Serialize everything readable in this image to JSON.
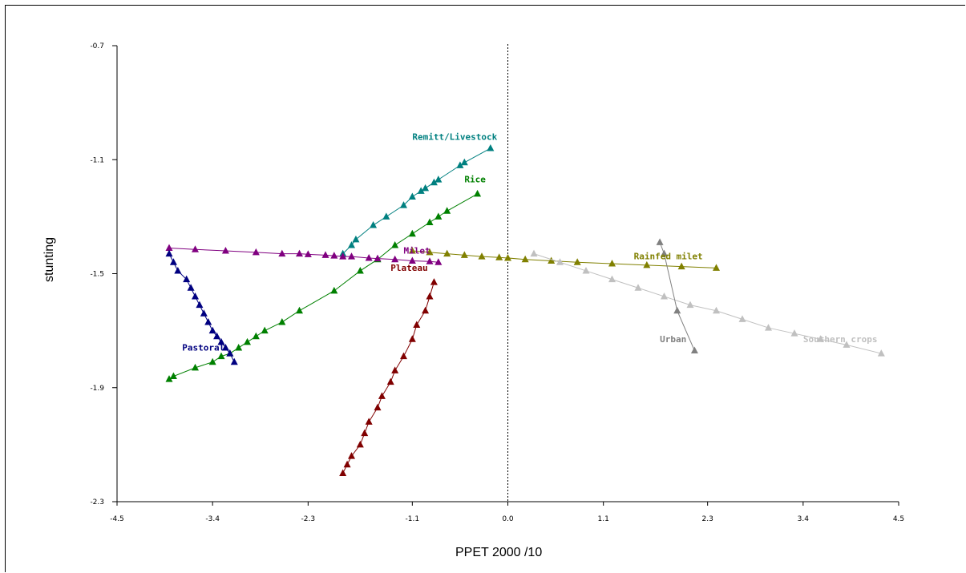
{
  "chart_data": {
    "type": "line",
    "xlabel": "PPET 2000 /10",
    "ylabel": "stunting",
    "xlim": [
      -4.5,
      4.5
    ],
    "ylim": [
      -2.3,
      -0.7
    ],
    "x_ticks": [
      "-4.5",
      "-3.4",
      "-2.3",
      "-1.1",
      "0.0",
      "1.1",
      "2.3",
      "3.4",
      "4.5"
    ],
    "y_ticks": [
      "-0.7",
      "-1.1",
      "-1.5",
      "-1.9",
      "-2.3"
    ],
    "reference_line_x": 0.0,
    "series": [
      {
        "name": "Remitt/Livestock",
        "color": "#008080",
        "x": [
          -1.9,
          -1.8,
          -1.75,
          -1.55,
          -1.4,
          -1.2,
          -1.1,
          -1.0,
          -0.95,
          -0.85,
          -0.8,
          -0.55,
          -0.5,
          -0.2
        ],
        "y": [
          -1.43,
          -1.4,
          -1.38,
          -1.33,
          -1.3,
          -1.26,
          -1.23,
          -1.21,
          -1.2,
          -1.18,
          -1.17,
          -1.12,
          -1.11,
          -1.06
        ]
      },
      {
        "name": "Rice",
        "color": "#008000",
        "x": [
          -3.9,
          -3.85,
          -3.6,
          -3.4,
          -3.3,
          -3.2,
          -3.1,
          -3.0,
          -2.9,
          -2.8,
          -2.6,
          -2.4,
          -2.0,
          -1.7,
          -1.5,
          -1.3,
          -1.1,
          -0.9,
          -0.8,
          -0.7,
          -0.35
        ],
        "y": [
          -1.87,
          -1.86,
          -1.83,
          -1.81,
          -1.79,
          -1.78,
          -1.76,
          -1.74,
          -1.72,
          -1.7,
          -1.67,
          -1.63,
          -1.56,
          -1.49,
          -1.45,
          -1.4,
          -1.36,
          -1.32,
          -1.3,
          -1.28,
          -1.22
        ]
      },
      {
        "name": "Milet",
        "color": "#800080",
        "x": [
          -3.9,
          -3.6,
          -3.25,
          -2.9,
          -2.6,
          -2.4,
          -2.3,
          -2.1,
          -2.0,
          -1.9,
          -1.8,
          -1.6,
          -1.5,
          -1.3,
          -1.1,
          -0.9,
          -0.8
        ],
        "y": [
          -1.41,
          -1.415,
          -1.42,
          -1.425,
          -1.43,
          -1.43,
          -1.432,
          -1.435,
          -1.437,
          -1.44,
          -1.44,
          -1.445,
          -1.447,
          -1.45,
          -1.455,
          -1.457,
          -1.46
        ]
      },
      {
        "name": "Pastoral",
        "color": "#000080",
        "x": [
          -3.9,
          -3.85,
          -3.8,
          -3.7,
          -3.65,
          -3.6,
          -3.55,
          -3.5,
          -3.45,
          -3.4,
          -3.35,
          -3.3,
          -3.25,
          -3.2,
          -3.15
        ],
        "y": [
          -1.43,
          -1.46,
          -1.49,
          -1.52,
          -1.55,
          -1.58,
          -1.61,
          -1.64,
          -1.67,
          -1.7,
          -1.72,
          -1.74,
          -1.76,
          -1.78,
          -1.81
        ]
      },
      {
        "name": "Plateau",
        "color": "#800000",
        "x": [
          -1.9,
          -1.85,
          -1.8,
          -1.7,
          -1.65,
          -1.6,
          -1.5,
          -1.45,
          -1.35,
          -1.3,
          -1.2,
          -1.1,
          -1.05,
          -0.95,
          -0.9,
          -0.85
        ],
        "y": [
          -2.2,
          -2.17,
          -2.14,
          -2.1,
          -2.06,
          -2.02,
          -1.97,
          -1.93,
          -1.88,
          -1.84,
          -1.79,
          -1.73,
          -1.68,
          -1.63,
          -1.58,
          -1.53
        ]
      },
      {
        "name": "Rainfed milet",
        "color": "#808000",
        "x": [
          -1.1,
          -0.9,
          -0.7,
          -0.5,
          -0.3,
          -0.1,
          0.0,
          0.2,
          0.5,
          0.8,
          1.2,
          1.6,
          2.0,
          2.4
        ],
        "y": [
          -1.42,
          -1.425,
          -1.43,
          -1.435,
          -1.44,
          -1.443,
          -1.445,
          -1.45,
          -1.455,
          -1.46,
          -1.465,
          -1.47,
          -1.475,
          -1.48
        ]
      },
      {
        "name": "Southern crops",
        "color": "#C0C0C0",
        "x": [
          0.3,
          0.6,
          0.9,
          1.2,
          1.5,
          1.8,
          2.1,
          2.4,
          2.7,
          3.0,
          3.3,
          3.6,
          3.9,
          4.3
        ],
        "y": [
          -1.43,
          -1.46,
          -1.49,
          -1.52,
          -1.55,
          -1.58,
          -1.61,
          -1.63,
          -1.66,
          -1.69,
          -1.71,
          -1.73,
          -1.75,
          -1.78
        ]
      },
      {
        "name": "Urban",
        "color": "#808080",
        "x": [
          1.75,
          1.8,
          1.95,
          2.15
        ],
        "y": [
          -1.39,
          -1.43,
          -1.63,
          -1.77
        ]
      }
    ],
    "series_labels": [
      {
        "text": "Remitt/Livestock",
        "color": "#008080",
        "x": -1.1,
        "y": -1.03
      },
      {
        "text": "Rice",
        "color": "#008000",
        "x": -0.5,
        "y": -1.18
      },
      {
        "text": "Milet",
        "color": "#800080",
        "x": -1.2,
        "y": -1.43
      },
      {
        "text": "Pastoral",
        "color": "#000080",
        "x": -3.75,
        "y": -1.77
      },
      {
        "text": "Plateau",
        "color": "#800000",
        "x": -1.35,
        "y": -1.49
      },
      {
        "text": "Rainfed milet",
        "color": "#808000",
        "x": 1.45,
        "y": -1.45
      },
      {
        "text": "Urban",
        "color": "#808080",
        "x": 1.75,
        "y": -1.74
      },
      {
        "text": "Southern crops",
        "color": "#C0C0C0",
        "x": 3.4,
        "y": -1.74
      }
    ]
  }
}
